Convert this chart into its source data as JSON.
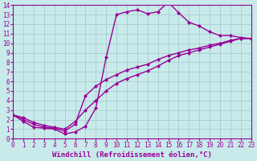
{
  "xlabel": "Windchill (Refroidissement éolien,°C)",
  "bg_color": "#c8eaea",
  "line_color": "#990099",
  "grid_color": "#aacccc",
  "line1_x": [
    0,
    1,
    2,
    3,
    4,
    5,
    6,
    7,
    8,
    9,
    10,
    11,
    12,
    13,
    14,
    15,
    16,
    17,
    18,
    19,
    20,
    21,
    22,
    23
  ],
  "line1_y": [
    2.5,
    1.8,
    1.2,
    1.1,
    1.0,
    0.5,
    0.7,
    1.3,
    3.2,
    8.5,
    13.0,
    13.3,
    13.5,
    13.1,
    13.3,
    14.3,
    13.2,
    12.2,
    11.8,
    11.2,
    10.8,
    10.8,
    10.6,
    10.5
  ],
  "line2_x": [
    0,
    1,
    2,
    3,
    4,
    5,
    6,
    7,
    8,
    9,
    10,
    11,
    12,
    13,
    14,
    15,
    16,
    17,
    18,
    19,
    20,
    21,
    22,
    23
  ],
  "line2_y": [
    2.5,
    2.0,
    1.5,
    1.2,
    1.1,
    0.8,
    1.5,
    4.5,
    5.5,
    6.2,
    6.7,
    7.2,
    7.5,
    7.8,
    8.3,
    8.7,
    9.0,
    9.3,
    9.5,
    9.8,
    10.0,
    10.3,
    10.5,
    10.5
  ],
  "line3_x": [
    0,
    1,
    2,
    3,
    4,
    5,
    6,
    7,
    8,
    9,
    10,
    11,
    12,
    13,
    14,
    15,
    16,
    17,
    18,
    19,
    20,
    21,
    22,
    23
  ],
  "line3_y": [
    2.5,
    2.2,
    1.7,
    1.4,
    1.2,
    1.0,
    1.8,
    3.0,
    4.0,
    5.0,
    5.8,
    6.3,
    6.7,
    7.1,
    7.6,
    8.2,
    8.7,
    9.0,
    9.3,
    9.6,
    9.9,
    10.2,
    10.5,
    10.5
  ],
  "xlim": [
    0,
    23
  ],
  "ylim": [
    0,
    14
  ],
  "xticks": [
    0,
    1,
    2,
    3,
    4,
    5,
    6,
    7,
    8,
    9,
    10,
    11,
    12,
    13,
    14,
    15,
    16,
    17,
    18,
    19,
    20,
    21,
    22,
    23
  ],
  "yticks": [
    0,
    1,
    2,
    3,
    4,
    5,
    6,
    7,
    8,
    9,
    10,
    11,
    12,
    13,
    14
  ],
  "marker": "D",
  "markersize": 2,
  "linewidth": 1.0,
  "tick_fontsize": 5.5,
  "label_fontsize": 6.5
}
